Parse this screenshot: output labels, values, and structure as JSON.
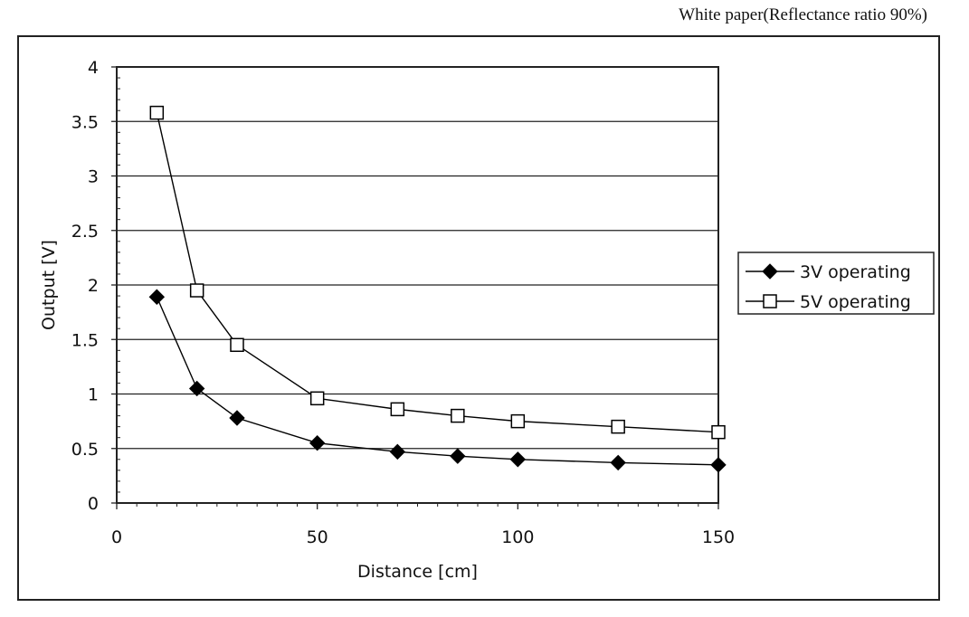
{
  "caption": "White paper(Reflectance ratio 90%)",
  "chart_data": {
    "type": "line",
    "title": "",
    "xlabel": "Distance [cm]",
    "ylabel": "Output [V]",
    "xlim": [
      0,
      150
    ],
    "ylim": [
      0,
      4
    ],
    "xticks": [
      0,
      50,
      100,
      150
    ],
    "xtick_labels": [
      "0",
      "50",
      "100",
      "150"
    ],
    "yticks": [
      0,
      0.5,
      1,
      1.5,
      2,
      2.5,
      3,
      3.5,
      4
    ],
    "ytick_labels": [
      "0",
      "0.5",
      "1",
      "1.5",
      "2",
      "2.5",
      "3",
      "3.5",
      "4"
    ],
    "grid": "horizontal",
    "legend_position": "right",
    "x": [
      10,
      20,
      30,
      50,
      70,
      85,
      100,
      125,
      150
    ],
    "series": [
      {
        "name": "3V operating",
        "marker": "filled-diamond",
        "color": "#000000",
        "values": [
          1.89,
          1.05,
          0.78,
          0.55,
          0.47,
          0.43,
          0.4,
          0.37,
          0.35
        ]
      },
      {
        "name": "5V operating",
        "marker": "open-square",
        "color": "#000000",
        "values": [
          3.58,
          1.95,
          1.45,
          0.96,
          0.86,
          0.8,
          0.75,
          0.7,
          0.65
        ]
      }
    ]
  }
}
